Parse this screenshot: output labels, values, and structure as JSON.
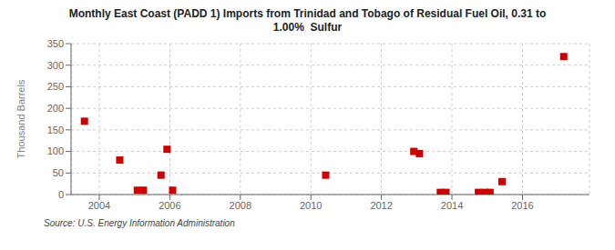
{
  "chart_data": {
    "type": "scatter",
    "title": "Monthly East Coast (PADD 1) Imports from Trinidad and Tobago of Residual Fuel Oil, 0.31 to\n1.00%  Sulfur",
    "ylabel": "Thousand Barrels",
    "annotations": [
      "Source: U.S. Energy Information Administration"
    ],
    "color": "#cc0000",
    "marker": "square",
    "grid": true,
    "xlim": [
      2003.2,
      2017.9
    ],
    "ylim": [
      0,
      350
    ],
    "xticks": [
      2004,
      2006,
      2008,
      2010,
      2012,
      2014,
      2016
    ],
    "yticks": [
      0,
      50,
      100,
      150,
      200,
      250,
      300,
      350
    ],
    "x": [
      2003.58,
      2004.58,
      2005.08,
      2005.25,
      2005.75,
      2005.92,
      2006.08,
      2010.42,
      2012.92,
      2013.08,
      2013.67,
      2013.83,
      2014.75,
      2014.92,
      2015.08,
      2015.42,
      2017.17
    ],
    "values": [
      170,
      80,
      10,
      10,
      45,
      105,
      10,
      45,
      100,
      95,
      5,
      5,
      5,
      5,
      5,
      30,
      320
    ]
  }
}
